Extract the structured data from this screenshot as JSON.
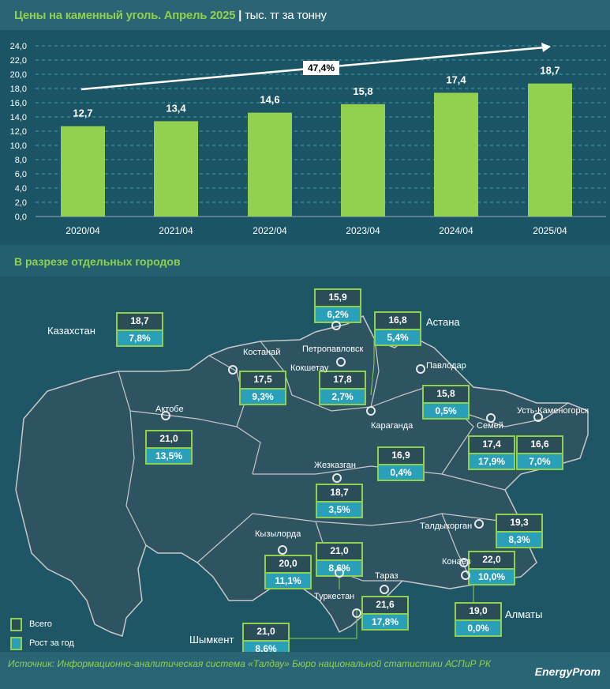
{
  "header": {
    "title": "Цены на каменный уголь. Апрель 2025",
    "unit": "тыс. тг за тонну"
  },
  "chart_data": {
    "type": "bar",
    "categories": [
      "2020/04",
      "2021/04",
      "2022/04",
      "2023/04",
      "2024/04",
      "2025/04"
    ],
    "values": [
      12.7,
      13.4,
      14.6,
      15.8,
      17.4,
      18.7
    ],
    "value_labels": [
      "12,7",
      "13,4",
      "14,6",
      "15,8",
      "17,4",
      "18,7"
    ],
    "ylim": [
      0,
      24
    ],
    "yticks": [
      "0,0",
      "2,0",
      "4,0",
      "6,0",
      "8,0",
      "10,0",
      "12,0",
      "14,0",
      "16,0",
      "18,0",
      "20,0",
      "22,0",
      "24,0"
    ],
    "growth_label": "47,4%",
    "bar_color": "#92d050",
    "grid": true
  },
  "section_title": "В разрезе отдельных городов",
  "cities": [
    {
      "name": "Казахстан",
      "total": "18,7",
      "growth": "7,8%"
    },
    {
      "name": "Петропавловск",
      "total": "15,9",
      "growth": "6,2%"
    },
    {
      "name": "Астана",
      "total": "16,8",
      "growth": "5,4%"
    },
    {
      "name": "Костанай",
      "total": "17,5",
      "growth": "9,3%"
    },
    {
      "name": "Кокшетау",
      "total": "17,8",
      "growth": "2,7%"
    },
    {
      "name": "Павлодар",
      "total": "15,8",
      "growth": "0,5%"
    },
    {
      "name": "Актобе",
      "total": "21,0",
      "growth": "13,5%"
    },
    {
      "name": "Семей",
      "total": "17,4",
      "growth": "17,9%"
    },
    {
      "name": "Усть-Каменогорск",
      "total": "16,6",
      "growth": "7,0%"
    },
    {
      "name": "Караганда",
      "total": "16,9",
      "growth": "0,4%"
    },
    {
      "name": "Жезказган",
      "total": "18,7",
      "growth": "3,5%"
    },
    {
      "name": "Талдыкорган",
      "total": "19,3",
      "growth": "8,3%"
    },
    {
      "name": "Кызылорда",
      "total": "20,0",
      "growth": "11,1%"
    },
    {
      "name": "Туркестан",
      "total": "21,0",
      "growth": "8,6%"
    },
    {
      "name": "Конаев",
      "total": "22,0",
      "growth": "10,0%"
    },
    {
      "name": "Тараз",
      "total": "21,6",
      "growth": "17,8%"
    },
    {
      "name": "Алматы",
      "total": "19,0",
      "growth": "0,0%"
    },
    {
      "name": "Шымкент",
      "total": "21,0",
      "growth": "8,6%"
    }
  ],
  "legend": {
    "total": "Всего",
    "growth": "Рост за год"
  },
  "footer": {
    "source": "Источник: Информационно-аналитическая система «Талдау» Бюро национальной статистики АСПиР РК",
    "logo": "EnergyProm"
  }
}
